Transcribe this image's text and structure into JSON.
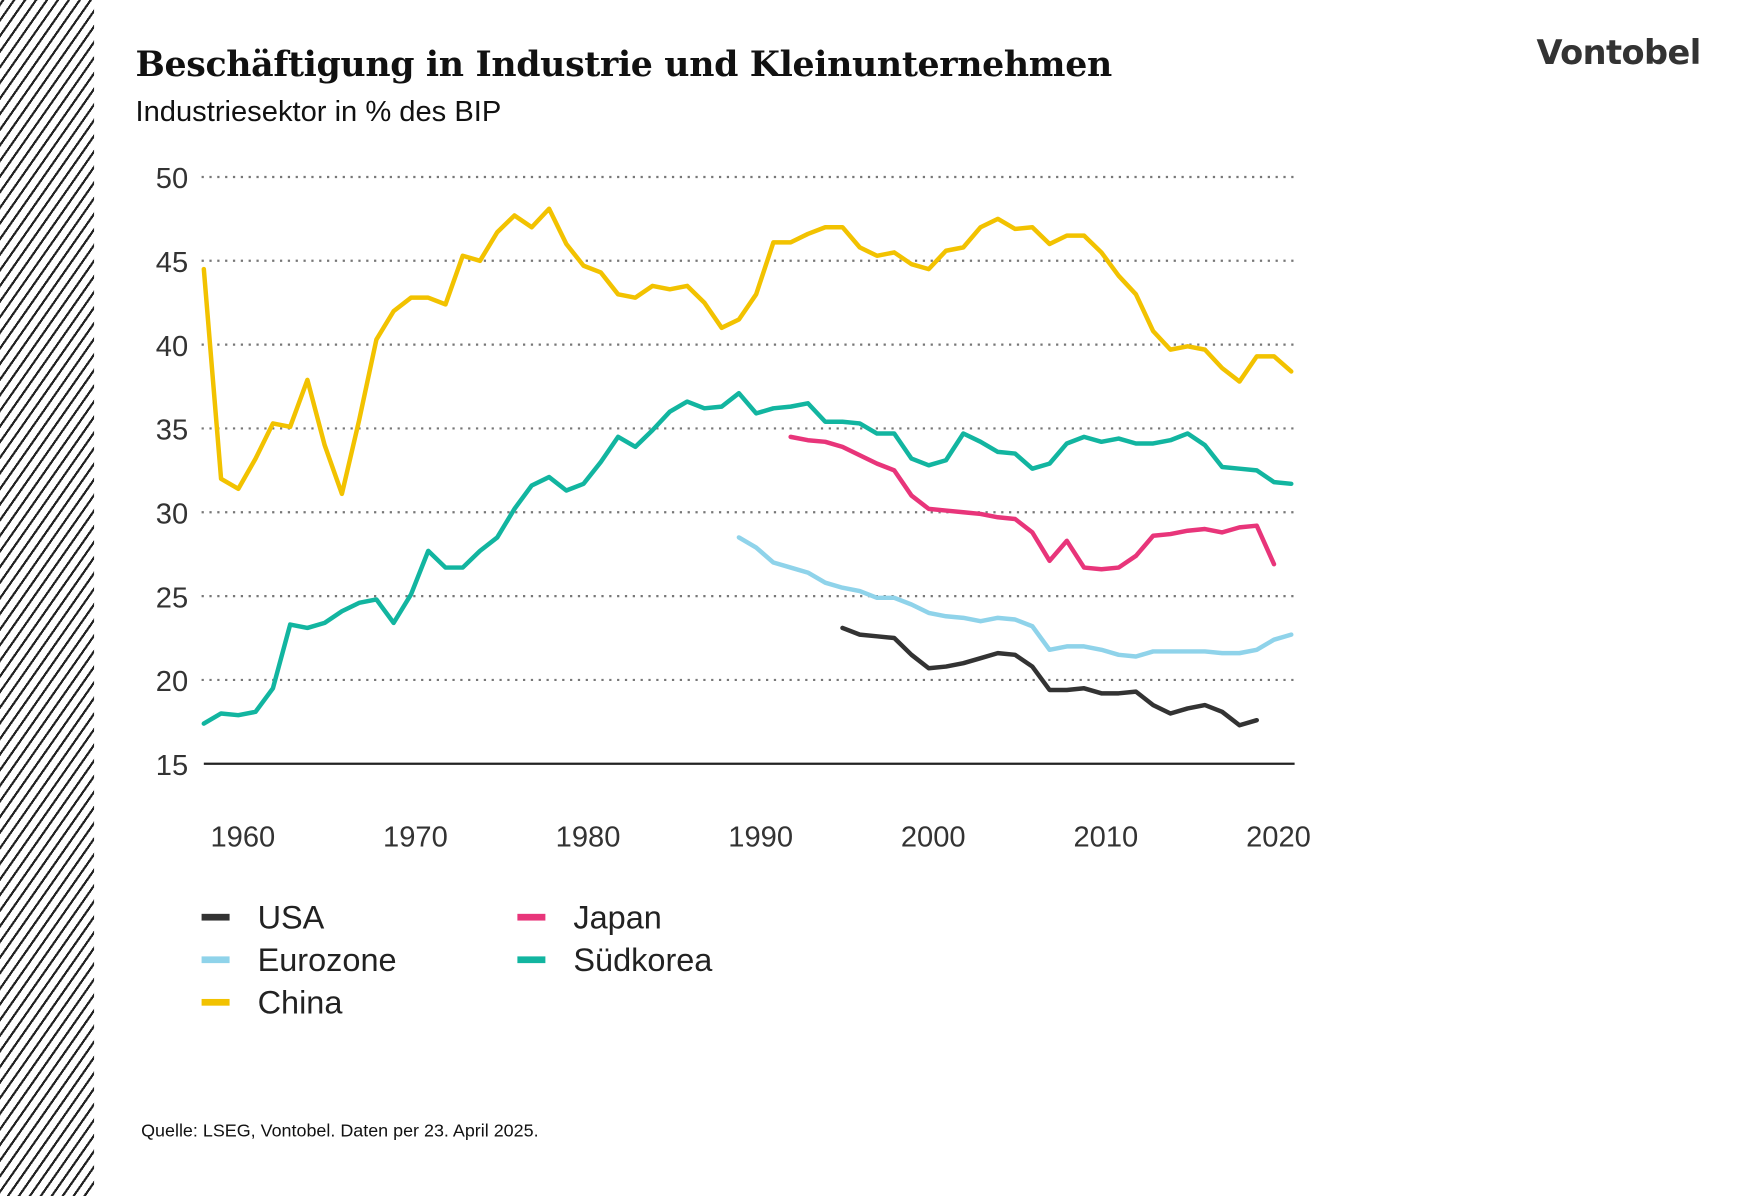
{
  "header": {
    "title": "Beschäftigung in Industrie und Kleinunternehmen",
    "subtitle": "Industriesektor in % des BIP",
    "logo_text": "Vontobel"
  },
  "footer": {
    "source": "Quelle: LSEG, Vontobel. Daten per 23. April 2025."
  },
  "chart_data": {
    "type": "line",
    "title": "Beschäftigung in Industrie und Kleinunternehmen",
    "subtitle": "Industriesektor in % des BIP",
    "xlabel": "",
    "ylabel": "",
    "xlim": [
      1958,
      2021
    ],
    "ylim": [
      15,
      50
    ],
    "yticks": [
      50,
      45,
      40,
      35,
      30,
      25,
      20,
      15
    ],
    "xticks": [
      1960,
      1970,
      1980,
      1990,
      2000,
      2010,
      2020
    ],
    "grid": "horizontal dotted",
    "legend_position": "bottom-left",
    "series": [
      {
        "name": "USA",
        "color": "#333333",
        "start_year": 1995,
        "values": [
          23.1,
          22.7,
          22.6,
          22.5,
          21.5,
          20.7,
          20.8,
          21,
          21.3,
          21.6,
          21.5,
          20.8,
          19.4,
          19.4,
          19.5,
          19.2,
          19.2,
          19.3,
          18.5,
          18,
          18.3,
          18.5,
          18.1,
          17.3,
          17.6
        ]
      },
      {
        "name": "Japan",
        "color": "#e8357a",
        "start_year": 1992,
        "values": [
          34.5,
          34.3,
          34.2,
          33.9,
          33.4,
          32.9,
          32.5,
          31,
          30.2,
          30.1,
          30,
          29.9,
          29.7,
          29.6,
          28.8,
          27.1,
          28.3,
          26.7,
          26.6,
          26.7,
          27.4,
          28.6,
          28.7,
          28.9,
          29,
          28.8,
          29.1,
          29.2,
          26.9
        ]
      },
      {
        "name": "Eurozone",
        "color": "#8fd3ea",
        "start_year": 1989,
        "values": [
          28.5,
          27.9,
          27,
          26.7,
          26.4,
          25.8,
          25.5,
          25.3,
          24.9,
          24.9,
          24.5,
          24,
          23.8,
          23.7,
          23.5,
          23.7,
          23.6,
          23.2,
          21.8,
          22,
          22,
          21.8,
          21.5,
          21.4,
          21.7,
          21.7,
          21.7,
          21.7,
          21.6,
          21.6,
          21.8,
          22.4,
          22.7
        ]
      },
      {
        "name": "Südkorea",
        "color": "#12b5a0",
        "start_year": 1958,
        "values": [
          17.4,
          18,
          17.9,
          18.1,
          19.5,
          23.3,
          23.1,
          23.4,
          24.1,
          24.6,
          24.8,
          23.4,
          25.1,
          27.7,
          26.7,
          26.7,
          27.7,
          28.5,
          30.2,
          31.6,
          32.1,
          31.3,
          31.7,
          33,
          34.5,
          33.9,
          34.9,
          36,
          36.6,
          36.2,
          36.3,
          37.1,
          35.9,
          36.2,
          36.3,
          36.5,
          35.4,
          35.4,
          35.3,
          34.7,
          34.7,
          33.2,
          32.8,
          33.1,
          34.7,
          34.2,
          33.6,
          33.5,
          32.6,
          32.9,
          34.1,
          34.5,
          34.2,
          34.4,
          34.1,
          34.1,
          34.3,
          34.7,
          34,
          32.7,
          32.6,
          32.5,
          31.8,
          31.7
        ]
      },
      {
        "name": "China",
        "color": "#f2c200",
        "start_year": 1958,
        "values": [
          44.5,
          32,
          31.4,
          33.2,
          35.3,
          35.1,
          37.9,
          34,
          31.1,
          35.5,
          40.3,
          42,
          42.8,
          42.8,
          42.4,
          45.3,
          45,
          46.7,
          47.7,
          47,
          48.1,
          46,
          44.7,
          44.3,
          43,
          42.8,
          43.5,
          43.3,
          43.5,
          42.5,
          41,
          41.5,
          43,
          46.1,
          46.1,
          46.6,
          47,
          47,
          45.8,
          45.3,
          45.5,
          44.8,
          44.5,
          45.6,
          45.8,
          47,
          47.5,
          46.9,
          47,
          46,
          46.5,
          46.5,
          45.5,
          44.1,
          43,
          40.8,
          39.7,
          39.9,
          39.7,
          38.6,
          37.8,
          39.3,
          39.3,
          38.4
        ]
      }
    ],
    "legend_order": [
      "USA",
      "Japan",
      "Eurozone",
      "Südkorea",
      "China"
    ]
  }
}
